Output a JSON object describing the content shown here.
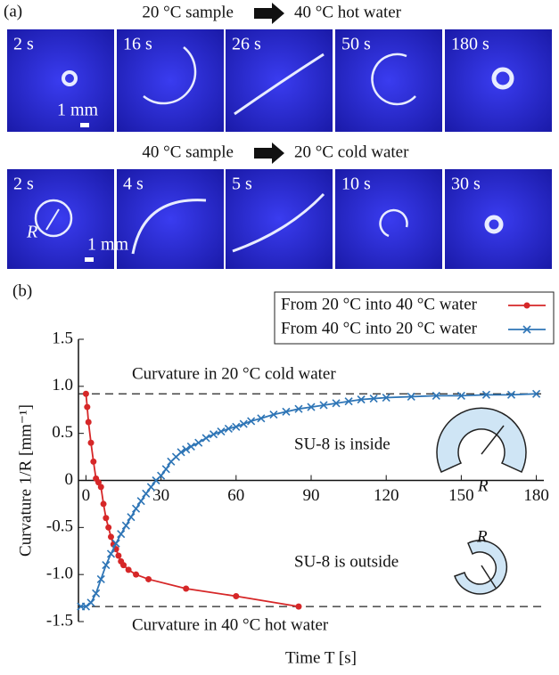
{
  "panel_a": {
    "label": "(a)",
    "rows": [
      {
        "sample": "20 °C sample",
        "water": "40 °C hot water",
        "frames": [
          "2 s",
          "16 s",
          "26 s",
          "50 s",
          "180 s"
        ],
        "scale": "1 mm"
      },
      {
        "sample": "40 °C sample",
        "water": "20 °C cold water",
        "frames": [
          "2 s",
          "4 s",
          "5 s",
          "10 s",
          "30 s"
        ],
        "scale": "1 mm",
        "radius_label": "R"
      }
    ]
  },
  "chart_data": {
    "type": "line",
    "panel_label": "(b)",
    "xlabel": "Time T [s]",
    "ylabel": "Curvature 1/R [mm⁻¹]",
    "xlim": [
      -3,
      183
    ],
    "ylim": [
      -1.5,
      1.5
    ],
    "xticks": [
      0,
      30,
      60,
      90,
      120,
      150,
      180
    ],
    "yticks": [
      1.5,
      {
        "value": 1,
        "label": "1.0"
      },
      0.5,
      0,
      -0.5,
      {
        "value": -1,
        "label": "-1.0"
      },
      -1.5
    ],
    "legend": "upper right",
    "reference_lines": [
      {
        "value": 0.92,
        "label": "Curvature in 20 °C cold water"
      },
      {
        "value": -1.34,
        "label": "Curvature in 40 °C hot water"
      }
    ],
    "annotations": [
      "SU-8 is inside",
      "SU-8 is outside",
      "R",
      "R"
    ],
    "series": [
      {
        "name": "From 20 °C into 40 °C water",
        "color": "#d62728",
        "marker": "o",
        "x": [
          0,
          0.5,
          1,
          2,
          3,
          4,
          5,
          6,
          7,
          8,
          9,
          10,
          11,
          12,
          13,
          14,
          15,
          17,
          20,
          25,
          40,
          60,
          85
        ],
        "values": [
          0.92,
          0.78,
          0.62,
          0.4,
          0.2,
          0.02,
          -0.02,
          -0.07,
          -0.25,
          -0.4,
          -0.5,
          -0.6,
          -0.68,
          -0.73,
          -0.8,
          -0.86,
          -0.9,
          -0.95,
          -1.0,
          -1.05,
          -1.15,
          -1.23,
          -1.34
        ]
      },
      {
        "name": "From 40 °C into 20 °C water",
        "color": "#2e75b6",
        "marker": "x",
        "x": [
          -2,
          0,
          2,
          4,
          6,
          8,
          10,
          12,
          14,
          16,
          18,
          20,
          22,
          24,
          26,
          28,
          30,
          32,
          34,
          36,
          38,
          40,
          42,
          45,
          48,
          51,
          54,
          57,
          60,
          63,
          66,
          70,
          75,
          80,
          85,
          90,
          95,
          100,
          105,
          110,
          115,
          120,
          130,
          140,
          150,
          160,
          170,
          180
        ],
        "values": [
          -1.34,
          -1.34,
          -1.3,
          -1.2,
          -1.05,
          -0.9,
          -0.78,
          -0.67,
          -0.57,
          -0.48,
          -0.39,
          -0.3,
          -0.22,
          -0.14,
          -0.07,
          0.0,
          0.05,
          0.12,
          0.2,
          0.25,
          0.3,
          0.33,
          0.36,
          0.4,
          0.45,
          0.49,
          0.52,
          0.55,
          0.57,
          0.6,
          0.63,
          0.66,
          0.7,
          0.73,
          0.76,
          0.78,
          0.8,
          0.82,
          0.84,
          0.86,
          0.87,
          0.88,
          0.89,
          0.9,
          0.9,
          0.91,
          0.91,
          0.92
        ]
      }
    ]
  }
}
